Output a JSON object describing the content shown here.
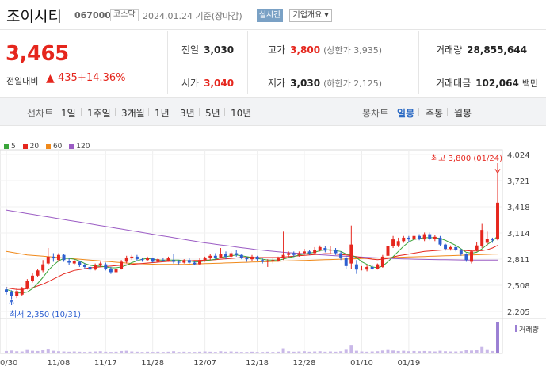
{
  "header": {
    "company_name": "조이시티",
    "company_code": "067000",
    "market": "코스닥",
    "date_text": "2024.01.24  기준(장마감)",
    "realtime_label": "실시간",
    "company_info_label": "기업개요 ▾"
  },
  "price": {
    "current": "3,465",
    "change_label": "전일대비",
    "change_arrow": "▲",
    "change_value": "435",
    "change_pct": "+14.36%"
  },
  "stats": {
    "prev_close_label": "전일",
    "prev_close": "3,030",
    "high_label": "고가",
    "high": "3,800",
    "upper_limit": "(상한가 3,935)",
    "volume_label": "거래량",
    "volume": "28,855,644",
    "open_label": "시가",
    "open": "3,040",
    "low_label": "저가",
    "low": "3,030",
    "lower_limit": "(하한가 2,125)",
    "amount_label": "거래대금",
    "amount": "102,064",
    "amount_unit": "백만"
  },
  "period_bar": {
    "line_chart_label": "선차트",
    "line_periods": [
      "1일",
      "1주일",
      "3개월",
      "1년",
      "3년",
      "5년",
      "10년"
    ],
    "candle_chart_label": "봉차트",
    "candle_periods": [
      "일봉",
      "주봉",
      "월봉"
    ],
    "active_candle": "일봉"
  },
  "legend": [
    {
      "name": "5",
      "color": "#3aa53a"
    },
    {
      "name": "20",
      "color": "#e5261d"
    },
    {
      "name": "60",
      "color": "#f0891a"
    },
    {
      "name": "120",
      "color": "#9b5cc4"
    }
  ],
  "colors": {
    "up": "#e5261d",
    "down": "#2d5fd0",
    "accent": "#2d6bc4"
  },
  "chart_data": {
    "type": "candlestick",
    "y_ticks": [
      "4,024",
      "3,721",
      "3,418",
      "3,114",
      "2,811",
      "2,508",
      "2,205"
    ],
    "ylim": [
      2205,
      4024
    ],
    "x_ticks": [
      "10/30",
      "11/08",
      "11/17",
      "11/28",
      "12/07",
      "12/18",
      "12/28",
      "01/10",
      "01/19"
    ],
    "high_annotation": "최고 3,800 (01/24)",
    "low_annotation": "최저 2,350 (10/31)",
    "volume_label": "거래량",
    "candles": [
      {
        "o": 2460,
        "c": 2430,
        "h": 2490,
        "l": 2400
      },
      {
        "o": 2430,
        "c": 2380,
        "h": 2450,
        "l": 2350
      },
      {
        "o": 2380,
        "c": 2440,
        "h": 2470,
        "l": 2360
      },
      {
        "o": 2400,
        "c": 2470,
        "h": 2490,
        "l": 2380
      },
      {
        "o": 2470,
        "c": 2560,
        "h": 2580,
        "l": 2460
      },
      {
        "o": 2560,
        "c": 2620,
        "h": 2650,
        "l": 2540
      },
      {
        "o": 2620,
        "c": 2680,
        "h": 2700,
        "l": 2600
      },
      {
        "o": 2680,
        "c": 2750,
        "h": 2800,
        "l": 2660
      },
      {
        "o": 2760,
        "c": 2840,
        "h": 2940,
        "l": 2740
      },
      {
        "o": 2840,
        "c": 2820,
        "h": 2880,
        "l": 2780
      },
      {
        "o": 2800,
        "c": 2860,
        "h": 2880,
        "l": 2780
      },
      {
        "o": 2860,
        "c": 2800,
        "h": 2870,
        "l": 2780
      },
      {
        "o": 2790,
        "c": 2770,
        "h": 2820,
        "l": 2740
      },
      {
        "o": 2760,
        "c": 2790,
        "h": 2810,
        "l": 2740
      },
      {
        "o": 2780,
        "c": 2740,
        "h": 2790,
        "l": 2720
      },
      {
        "o": 2740,
        "c": 2720,
        "h": 2760,
        "l": 2700
      },
      {
        "o": 2720,
        "c": 2690,
        "h": 2740,
        "l": 2660
      },
      {
        "o": 2690,
        "c": 2740,
        "h": 2760,
        "l": 2680
      },
      {
        "o": 2740,
        "c": 2760,
        "h": 2780,
        "l": 2720
      },
      {
        "o": 2750,
        "c": 2700,
        "h": 2770,
        "l": 2680
      },
      {
        "o": 2700,
        "c": 2660,
        "h": 2720,
        "l": 2640
      },
      {
        "o": 2660,
        "c": 2700,
        "h": 2720,
        "l": 2640
      },
      {
        "o": 2700,
        "c": 2780,
        "h": 2800,
        "l": 2690
      },
      {
        "o": 2780,
        "c": 2830,
        "h": 2850,
        "l": 2760
      },
      {
        "o": 2820,
        "c": 2840,
        "h": 2860,
        "l": 2800
      },
      {
        "o": 2840,
        "c": 2810,
        "h": 2860,
        "l": 2790
      },
      {
        "o": 2810,
        "c": 2800,
        "h": 2830,
        "l": 2780
      },
      {
        "o": 2800,
        "c": 2820,
        "h": 2840,
        "l": 2790
      },
      {
        "o": 2820,
        "c": 2780,
        "h": 2830,
        "l": 2770
      },
      {
        "o": 2780,
        "c": 2810,
        "h": 2820,
        "l": 2770
      },
      {
        "o": 2800,
        "c": 2790,
        "h": 2830,
        "l": 2780
      },
      {
        "o": 2790,
        "c": 2820,
        "h": 2840,
        "l": 2780
      },
      {
        "o": 2800,
        "c": 2780,
        "h": 2870,
        "l": 2760
      },
      {
        "o": 2780,
        "c": 2770,
        "h": 2800,
        "l": 2750
      },
      {
        "o": 2770,
        "c": 2800,
        "h": 2810,
        "l": 2760
      },
      {
        "o": 2800,
        "c": 2770,
        "h": 2820,
        "l": 2760
      },
      {
        "o": 2770,
        "c": 2750,
        "h": 2790,
        "l": 2740
      },
      {
        "o": 2750,
        "c": 2800,
        "h": 2820,
        "l": 2740
      },
      {
        "o": 2800,
        "c": 2830,
        "h": 2840,
        "l": 2780
      },
      {
        "o": 2830,
        "c": 2850,
        "h": 2870,
        "l": 2800
      },
      {
        "o": 2850,
        "c": 2830,
        "h": 2880,
        "l": 2810
      },
      {
        "o": 2830,
        "c": 2870,
        "h": 2940,
        "l": 2820
      },
      {
        "o": 2870,
        "c": 2840,
        "h": 2900,
        "l": 2810
      },
      {
        "o": 2840,
        "c": 2880,
        "h": 2900,
        "l": 2820
      },
      {
        "o": 2880,
        "c": 2860,
        "h": 2920,
        "l": 2840
      },
      {
        "o": 2860,
        "c": 2830,
        "h": 2870,
        "l": 2810
      },
      {
        "o": 2830,
        "c": 2810,
        "h": 2840,
        "l": 2780
      },
      {
        "o": 2810,
        "c": 2840,
        "h": 2860,
        "l": 2790
      },
      {
        "o": 2840,
        "c": 2810,
        "h": 2850,
        "l": 2790
      },
      {
        "o": 2800,
        "c": 2780,
        "h": 2820,
        "l": 2760
      },
      {
        "o": 2780,
        "c": 2790,
        "h": 2810,
        "l": 2720
      },
      {
        "o": 2790,
        "c": 2800,
        "h": 2820,
        "l": 2760
      },
      {
        "o": 2790,
        "c": 2820,
        "h": 2840,
        "l": 2780
      },
      {
        "o": 2820,
        "c": 2860,
        "h": 3130,
        "l": 2800
      },
      {
        "o": 2860,
        "c": 2880,
        "h": 2900,
        "l": 2840
      },
      {
        "o": 2880,
        "c": 2860,
        "h": 2900,
        "l": 2840
      },
      {
        "o": 2860,
        "c": 2880,
        "h": 2900,
        "l": 2840
      },
      {
        "o": 2880,
        "c": 2900,
        "h": 2930,
        "l": 2860
      },
      {
        "o": 2900,
        "c": 2880,
        "h": 2920,
        "l": 2860
      },
      {
        "o": 2880,
        "c": 2920,
        "h": 2950,
        "l": 2870
      },
      {
        "o": 2920,
        "c": 2950,
        "h": 2970,
        "l": 2900
      },
      {
        "o": 2940,
        "c": 2910,
        "h": 2960,
        "l": 2890
      },
      {
        "o": 2910,
        "c": 2920,
        "h": 2960,
        "l": 2880
      },
      {
        "o": 2920,
        "c": 2880,
        "h": 2940,
        "l": 2860
      },
      {
        "o": 2880,
        "c": 2830,
        "h": 2900,
        "l": 2800
      },
      {
        "o": 2830,
        "c": 2730,
        "h": 2850,
        "l": 2700
      },
      {
        "o": 2760,
        "c": 2980,
        "h": 3200,
        "l": 2700
      },
      {
        "o": 2750,
        "c": 2690,
        "h": 2800,
        "l": 2640
      },
      {
        "o": 2700,
        "c": 2700,
        "h": 2730,
        "l": 2680
      },
      {
        "o": 2690,
        "c": 2720,
        "h": 2740,
        "l": 2670
      },
      {
        "o": 2720,
        "c": 2700,
        "h": 2740,
        "l": 2690
      },
      {
        "o": 2700,
        "c": 2750,
        "h": 2760,
        "l": 2690
      },
      {
        "o": 2720,
        "c": 2840,
        "h": 2860,
        "l": 2710
      },
      {
        "o": 2850,
        "c": 2960,
        "h": 3000,
        "l": 2820
      },
      {
        "o": 2960,
        "c": 3040,
        "h": 3080,
        "l": 2940
      },
      {
        "o": 2970,
        "c": 3020,
        "h": 3060,
        "l": 2950
      },
      {
        "o": 3020,
        "c": 3060,
        "h": 3080,
        "l": 3000
      },
      {
        "o": 3060,
        "c": 3040,
        "h": 3080,
        "l": 3010
      },
      {
        "o": 3040,
        "c": 3080,
        "h": 3100,
        "l": 3020
      },
      {
        "o": 3080,
        "c": 3050,
        "h": 3100,
        "l": 3030
      },
      {
        "o": 3040,
        "c": 3100,
        "h": 3120,
        "l": 3020
      },
      {
        "o": 3100,
        "c": 3050,
        "h": 3120,
        "l": 3030
      },
      {
        "o": 3050,
        "c": 3070,
        "h": 3090,
        "l": 3020
      },
      {
        "o": 3060,
        "c": 2980,
        "h": 3080,
        "l": 2960
      },
      {
        "o": 2980,
        "c": 2930,
        "h": 2990,
        "l": 2910
      },
      {
        "o": 2930,
        "c": 2950,
        "h": 2970,
        "l": 2910
      },
      {
        "o": 2950,
        "c": 2920,
        "h": 2960,
        "l": 2900
      },
      {
        "o": 2910,
        "c": 2870,
        "h": 2930,
        "l": 2850
      },
      {
        "o": 2870,
        "c": 2800,
        "h": 2880,
        "l": 2780
      },
      {
        "o": 2780,
        "c": 2900,
        "h": 2920,
        "l": 2760
      },
      {
        "o": 2920,
        "c": 2970,
        "h": 3010,
        "l": 2900
      },
      {
        "o": 2960,
        "c": 3150,
        "h": 3220,
        "l": 2940
      },
      {
        "o": 3000,
        "c": 3050,
        "h": 3130,
        "l": 2970
      },
      {
        "o": 3040,
        "c": 3030,
        "h": 3060,
        "l": 3000
      },
      {
        "o": 3040,
        "c": 3465,
        "h": 3800,
        "l": 3030
      }
    ],
    "volume": [
      1.0,
      1.2,
      0.9,
      0.8,
      1.4,
      1.1,
      1.0,
      1.3,
      1.6,
      1.1,
      0.9,
      0.8,
      0.7,
      0.8,
      0.7,
      0.6,
      0.7,
      0.8,
      0.9,
      0.7,
      0.6,
      0.7,
      1.0,
      1.1,
      0.8,
      0.7,
      0.6,
      0.7,
      0.6,
      0.7,
      0.6,
      0.7,
      0.9,
      0.6,
      0.7,
      0.6,
      0.6,
      0.7,
      0.8,
      0.7,
      0.6,
      0.9,
      0.7,
      0.8,
      0.7,
      0.6,
      0.6,
      0.7,
      0.6,
      0.6,
      0.7,
      0.6,
      0.7,
      2.1,
      0.9,
      0.7,
      0.8,
      0.9,
      0.7,
      0.8,
      0.9,
      0.7,
      0.8,
      0.7,
      0.9,
      1.5,
      3.2,
      1.1,
      0.8,
      0.7,
      0.8,
      0.9,
      1.2,
      1.4,
      1.2,
      1.0,
      1.1,
      0.9,
      1.0,
      0.9,
      1.0,
      0.9,
      0.8,
      1.1,
      0.9,
      0.8,
      0.8,
      0.9,
      1.3,
      1.2,
      1.3,
      2.7,
      1.4,
      1.0,
      13.0
    ],
    "ma5": [
      2460,
      2440,
      2420,
      2420,
      2430,
      2470,
      2530,
      2600,
      2680,
      2740,
      2790,
      2820,
      2820,
      2810,
      2790,
      2760,
      2740,
      2730,
      2730,
      2720,
      2710,
      2710,
      2720,
      2740,
      2770,
      2790,
      2810,
      2820,
      2810,
      2800,
      2800,
      2800,
      2800,
      2800,
      2790,
      2790,
      2780,
      2780,
      2790,
      2800,
      2810,
      2830,
      2840,
      2850,
      2860,
      2850,
      2840,
      2830,
      2820,
      2810,
      2800,
      2800,
      2800,
      2810,
      2830,
      2840,
      2860,
      2870,
      2880,
      2890,
      2910,
      2920,
      2920,
      2910,
      2900,
      2870,
      2860,
      2830,
      2780,
      2750,
      2720,
      2710,
      2730,
      2780,
      2840,
      2900,
      2960,
      3010,
      3040,
      3050,
      3060,
      3060,
      3060,
      3050,
      3030,
      3000,
      2970,
      2930,
      2890,
      2880,
      2890,
      2930,
      2980,
      3020,
      3080
    ],
    "ma20": [
      2480,
      2470,
      2460,
      2460,
      2470,
      2480,
      2500,
      2520,
      2550,
      2580,
      2610,
      2640,
      2660,
      2680,
      2690,
      2700,
      2710,
      2715,
      2720,
      2725,
      2730,
      2735,
      2740,
      2745,
      2750,
      2755,
      2760,
      2765,
      2770,
      2775,
      2780,
      2785,
      2785,
      2790,
      2790,
      2790,
      2795,
      2795,
      2800,
      2800,
      2805,
      2810,
      2815,
      2820,
      2825,
      2830,
      2830,
      2830,
      2830,
      2830,
      2830,
      2830,
      2830,
      2835,
      2840,
      2845,
      2850,
      2855,
      2860,
      2865,
      2870,
      2875,
      2875,
      2870,
      2865,
      2860,
      2850,
      2840,
      2830,
      2820,
      2810,
      2805,
      2810,
      2820,
      2835,
      2850,
      2860,
      2870,
      2880,
      2890,
      2900,
      2905,
      2910,
      2915,
      2920,
      2920,
      2920,
      2915,
      2910,
      2905,
      2905,
      2910,
      2920,
      2940,
      2970
    ],
    "ma60": [
      2900,
      2890,
      2880,
      2870,
      2860,
      2855,
      2850,
      2845,
      2840,
      2835,
      2830,
      2825,
      2820,
      2815,
      2810,
      2805,
      2800,
      2795,
      2790,
      2785,
      2780,
      2775,
      2770,
      2765,
      2760,
      2758,
      2756,
      2754,
      2752,
      2750,
      2750,
      2750,
      2750,
      2750,
      2750,
      2752,
      2754,
      2756,
      2758,
      2760,
      2762,
      2764,
      2766,
      2768,
      2770,
      2772,
      2774,
      2776,
      2778,
      2780,
      2782,
      2784,
      2786,
      2788,
      2790,
      2792,
      2794,
      2796,
      2798,
      2800,
      2802,
      2804,
      2806,
      2808,
      2810,
      2812,
      2814,
      2816,
      2818,
      2820,
      2822,
      2824,
      2826,
      2828,
      2830,
      2832,
      2834,
      2836,
      2838,
      2840,
      2842,
      2844,
      2846,
      2848,
      2850,
      2852,
      2854,
      2856,
      2858,
      2860,
      2862,
      2864,
      2866,
      2868,
      2870
    ],
    "ma120": [
      3380,
      3370,
      3360,
      3350,
      3340,
      3330,
      3320,
      3310,
      3300,
      3290,
      3280,
      3270,
      3260,
      3250,
      3240,
      3230,
      3220,
      3210,
      3200,
      3190,
      3180,
      3170,
      3160,
      3150,
      3140,
      3130,
      3120,
      3110,
      3100,
      3090,
      3080,
      3070,
      3060,
      3050,
      3040,
      3030,
      3020,
      3010,
      3000,
      2992,
      2984,
      2976,
      2968,
      2960,
      2952,
      2944,
      2936,
      2928,
      2920,
      2914,
      2908,
      2902,
      2896,
      2890,
      2886,
      2882,
      2878,
      2874,
      2870,
      2866,
      2862,
      2858,
      2854,
      2850,
      2847,
      2844,
      2841,
      2838,
      2835,
      2832,
      2829,
      2826,
      2823,
      2820,
      2818,
      2816,
      2814,
      2812,
      2810,
      2809,
      2808,
      2807,
      2806,
      2805,
      2804,
      2803,
      2802,
      2801,
      2800,
      2800,
      2800,
      2800,
      2800,
      2800,
      2800
    ]
  }
}
